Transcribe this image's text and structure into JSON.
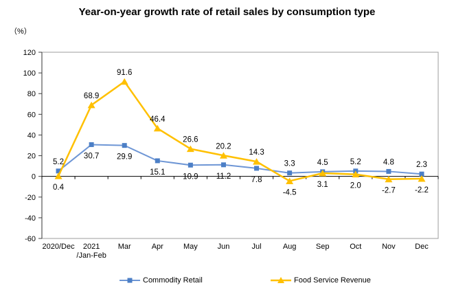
{
  "title": "Year-on-year growth rate of retail sales by consumption type",
  "unit_label": "（%）",
  "chart_data": {
    "type": "line",
    "categories": [
      "2020/Dec",
      "2021\n/Jan-Feb",
      "Mar",
      "Apr",
      "May",
      "Jun",
      "Jul",
      "Aug",
      "Sep",
      "Oct",
      "Nov",
      "Dec"
    ],
    "series": [
      {
        "name": "Commodity Retail",
        "marker": "square",
        "line_color": "#6E96D5",
        "marker_color": "#4C7FC6",
        "values": [
          5.2,
          30.7,
          29.9,
          15.1,
          10.9,
          11.2,
          7.8,
          3.3,
          4.5,
          5.2,
          4.8,
          2.3
        ],
        "label_side": [
          "above",
          "below",
          "below",
          "below",
          "below",
          "below",
          "below",
          "above",
          "above",
          "above",
          "above",
          "above"
        ]
      },
      {
        "name": "Food Service Revenue",
        "marker": "triangle",
        "line_color": "#FFC000",
        "marker_color": "#FFC000",
        "values": [
          0.4,
          68.9,
          91.6,
          46.4,
          26.6,
          20.2,
          14.3,
          -4.5,
          3.1,
          2.0,
          -2.7,
          -2.2
        ],
        "label_side": [
          "below",
          "above",
          "above",
          "above",
          "above",
          "above",
          "above",
          "below",
          "below",
          "below",
          "below",
          "below"
        ]
      }
    ],
    "ylim": [
      -60,
      120
    ],
    "ytick_step": 20,
    "grid": false,
    "legend_position": "bottom",
    "axis_color": "#000000",
    "border_color": "#9C9C9C",
    "label_color": "#000000"
  }
}
